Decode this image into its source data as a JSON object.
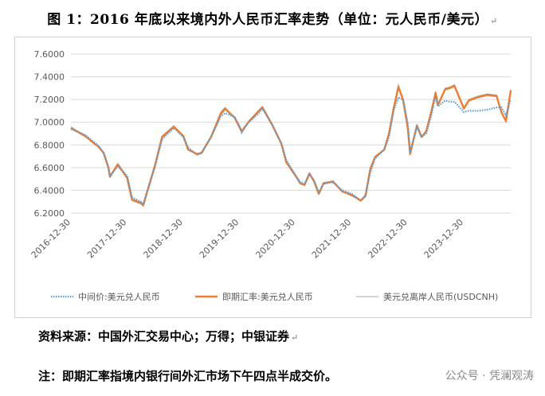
{
  "figure_title": "图 1：2016 年底以来境内外人民币汇率走势（单位：元人民币/美元）",
  "title_mark": "↵",
  "source_text": "资料来源：中国外汇交易中心；万得；中银证券",
  "note_text": "注：即期汇率指境内银行间外汇市场下午四点半成交价。",
  "watermark": "公众号 · 凭澜观涛",
  "colors": {
    "central_parity": "#5b9bd5",
    "spot": "#ed7d31",
    "offshore": "#a5a5a5",
    "grid": "#d9d9d9",
    "axis_text": "#595959"
  },
  "chart_data": {
    "type": "line",
    "title": "",
    "xlabel": "",
    "ylabel": "",
    "ylim": [
      6.2,
      7.6
    ],
    "yticks": [
      "6.2000",
      "6.4000",
      "6.6000",
      "6.8000",
      "7.0000",
      "7.2000",
      "7.4000",
      "7.6000"
    ],
    "xticks": [
      "2016-12-30",
      "2017-12-30",
      "2018-12-30",
      "2019-12-30",
      "2020-12-30",
      "2021-12-30",
      "2022-12-30",
      "2023-12-30"
    ],
    "x_range": [
      "2016-12-30",
      "2024-10-31"
    ],
    "grid": true,
    "legend_position": "bottom",
    "series": [
      {
        "name": "中间价:美元兑人民币",
        "style": "dotted",
        "x": [
          "2016-12-30",
          "2017-03-31",
          "2017-06-30",
          "2017-07-31",
          "2017-08-31",
          "2017-09-10",
          "2017-10-31",
          "2017-12-31",
          "2018-01-31",
          "2018-03-31",
          "2018-04-15",
          "2018-06-30",
          "2018-08-15",
          "2018-10-31",
          "2018-12-31",
          "2019-01-31",
          "2019-03-31",
          "2019-04-30",
          "2019-06-30",
          "2019-08-31",
          "2019-09-30",
          "2019-11-30",
          "2019-12-31",
          "2020-01-15",
          "2020-02-28",
          "2020-04-30",
          "2020-05-29",
          "2020-07-31",
          "2020-09-30",
          "2020-10-31",
          "2020-12-31",
          "2021-01-31",
          "2021-02-28",
          "2021-03-31",
          "2021-04-30",
          "2021-05-31",
          "2021-06-30",
          "2021-08-31",
          "2021-10-31",
          "2021-12-31",
          "2022-02-28",
          "2022-03-31",
          "2022-04-30",
          "2022-05-31",
          "2022-07-31",
          "2022-08-31",
          "2022-09-30",
          "2022-10-31",
          "2022-11-30",
          "2022-12-31",
          "2023-01-15",
          "2023-02-28",
          "2023-03-31",
          "2023-04-30",
          "2023-05-31",
          "2023-06-30",
          "2023-07-15",
          "2023-08-31",
          "2023-09-30",
          "2023-10-31",
          "2023-12-31",
          "2024-01-31",
          "2024-03-31",
          "2024-05-31",
          "2024-07-31",
          "2024-08-31",
          "2024-09-30",
          "2024-10-31"
        ],
        "values": [
          6.94,
          6.89,
          6.79,
          6.73,
          6.6,
          6.53,
          6.61,
          6.53,
          6.34,
          6.3,
          6.28,
          6.61,
          6.85,
          6.95,
          6.87,
          6.78,
          6.71,
          6.73,
          6.87,
          7.05,
          7.08,
          7.05,
          6.97,
          6.91,
          7.0,
          7.07,
          7.12,
          6.98,
          6.81,
          6.67,
          6.53,
          6.47,
          6.46,
          6.54,
          6.49,
          6.38,
          6.46,
          6.47,
          6.4,
          6.37,
          6.31,
          6.36,
          6.55,
          6.68,
          6.76,
          6.87,
          7.1,
          7.22,
          7.2,
          6.99,
          6.74,
          6.96,
          6.87,
          6.9,
          7.05,
          7.23,
          7.14,
          7.19,
          7.18,
          7.18,
          7.09,
          7.1,
          7.1,
          7.11,
          7.13,
          7.13,
          7.06,
          7.2
        ]
      },
      {
        "name": "即期汇率:美元兑人民币",
        "style": "solid",
        "x": [
          "2016-12-30",
          "2017-03-31",
          "2017-06-30",
          "2017-07-31",
          "2017-08-31",
          "2017-09-10",
          "2017-10-31",
          "2017-12-31",
          "2018-01-31",
          "2018-03-31",
          "2018-04-15",
          "2018-06-30",
          "2018-08-15",
          "2018-10-31",
          "2018-12-31",
          "2019-01-31",
          "2019-03-31",
          "2019-04-30",
          "2019-06-30",
          "2019-08-31",
          "2019-09-30",
          "2019-11-30",
          "2019-12-31",
          "2020-01-15",
          "2020-02-28",
          "2020-04-30",
          "2020-05-29",
          "2020-07-31",
          "2020-09-30",
          "2020-10-31",
          "2020-12-31",
          "2021-01-31",
          "2021-02-28",
          "2021-03-31",
          "2021-04-30",
          "2021-05-31",
          "2021-06-30",
          "2021-08-31",
          "2021-10-31",
          "2021-12-31",
          "2022-02-28",
          "2022-03-31",
          "2022-04-30",
          "2022-05-31",
          "2022-07-31",
          "2022-08-31",
          "2022-09-30",
          "2022-10-31",
          "2022-11-30",
          "2022-12-31",
          "2023-01-15",
          "2023-02-28",
          "2023-03-31",
          "2023-04-30",
          "2023-05-31",
          "2023-06-30",
          "2023-07-15",
          "2023-08-31",
          "2023-09-30",
          "2023-10-31",
          "2023-12-31",
          "2024-01-31",
          "2024-03-31",
          "2024-05-31",
          "2024-07-31",
          "2024-08-31",
          "2024-09-30",
          "2024-10-31"
        ],
        "values": [
          6.95,
          6.88,
          6.78,
          6.73,
          6.6,
          6.52,
          6.63,
          6.51,
          6.32,
          6.29,
          6.27,
          6.62,
          6.87,
          6.96,
          6.88,
          6.76,
          6.72,
          6.73,
          6.87,
          7.07,
          7.12,
          7.04,
          6.96,
          6.92,
          7.0,
          7.09,
          7.13,
          6.98,
          6.81,
          6.65,
          6.53,
          6.46,
          6.45,
          6.55,
          6.48,
          6.37,
          6.46,
          6.48,
          6.39,
          6.36,
          6.31,
          6.35,
          6.58,
          6.69,
          6.76,
          6.9,
          7.12,
          7.31,
          7.2,
          6.95,
          6.72,
          6.97,
          6.87,
          6.92,
          7.08,
          7.26,
          7.15,
          7.29,
          7.3,
          7.32,
          7.12,
          7.19,
          7.22,
          7.24,
          7.23,
          7.09,
          7.01,
          7.28
        ]
      },
      {
        "name": "美元兑离岸人民币(USDCNH)",
        "style": "thin",
        "x": [
          "2016-12-30",
          "2017-03-31",
          "2017-06-30",
          "2017-07-31",
          "2017-08-31",
          "2017-09-10",
          "2017-10-31",
          "2017-12-31",
          "2018-01-31",
          "2018-03-31",
          "2018-04-15",
          "2018-06-30",
          "2018-08-15",
          "2018-10-31",
          "2018-12-31",
          "2019-01-31",
          "2019-03-31",
          "2019-04-30",
          "2019-06-30",
          "2019-08-31",
          "2019-09-30",
          "2019-11-30",
          "2019-12-31",
          "2020-01-15",
          "2020-02-28",
          "2020-04-30",
          "2020-05-29",
          "2020-07-31",
          "2020-09-30",
          "2020-10-31",
          "2020-12-31",
          "2021-01-31",
          "2021-02-28",
          "2021-03-31",
          "2021-04-30",
          "2021-05-31",
          "2021-06-30",
          "2021-08-31",
          "2021-10-31",
          "2021-12-31",
          "2022-02-28",
          "2022-03-31",
          "2022-04-30",
          "2022-05-31",
          "2022-07-31",
          "2022-08-31",
          "2022-09-30",
          "2022-10-31",
          "2022-11-30",
          "2022-12-31",
          "2023-01-15",
          "2023-02-28",
          "2023-03-31",
          "2023-04-30",
          "2023-05-31",
          "2023-06-30",
          "2023-07-15",
          "2023-08-31",
          "2023-09-30",
          "2023-10-31",
          "2023-12-31",
          "2024-01-31",
          "2024-03-31",
          "2024-05-31",
          "2024-07-31",
          "2024-08-31",
          "2024-09-30",
          "2024-10-31"
        ],
        "values": [
          6.96,
          6.88,
          6.78,
          6.72,
          6.61,
          6.53,
          6.63,
          6.5,
          6.31,
          6.28,
          6.26,
          6.63,
          6.88,
          6.97,
          6.87,
          6.76,
          6.72,
          6.74,
          6.88,
          7.09,
          7.13,
          7.04,
          6.95,
          6.91,
          7.01,
          7.1,
          7.14,
          6.98,
          6.8,
          6.64,
          6.52,
          6.46,
          6.44,
          6.55,
          6.48,
          6.37,
          6.47,
          6.48,
          6.39,
          6.35,
          6.31,
          6.35,
          6.6,
          6.7,
          6.76,
          6.91,
          7.14,
          7.33,
          7.2,
          6.94,
          6.71,
          6.98,
          6.87,
          6.93,
          7.1,
          7.27,
          7.15,
          7.3,
          7.31,
          7.33,
          7.13,
          7.2,
          7.23,
          7.25,
          7.24,
          7.08,
          7.0,
          7.29
        ]
      }
    ]
  }
}
